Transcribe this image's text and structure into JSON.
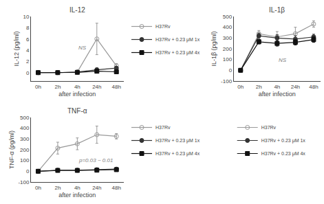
{
  "chart_data": [
    {
      "type": "line",
      "title": "IL-12",
      "xlabel": "after infection",
      "ylabel": "IL-12 (pg/ml)",
      "categories": [
        "0h",
        "2h",
        "4h",
        "24h",
        "48h"
      ],
      "ylim": [
        -1.5,
        10
      ],
      "yticks": [
        0,
        2,
        4,
        6,
        8,
        10
      ],
      "annotation": "NS",
      "grid": false,
      "legend": "right",
      "series": [
        {
          "name": "H37Rv",
          "color": "#999999",
          "marker": "circle-open",
          "values": [
            0,
            0,
            0.1,
            6.0,
            1.2
          ],
          "errors": [
            0.05,
            0.05,
            0.2,
            2.8,
            0.4
          ]
        },
        {
          "name": "H37Rv + 0.23 μM 1x",
          "color": "#333333",
          "marker": "circle",
          "values": [
            0,
            0,
            0.1,
            0.5,
            0.8
          ],
          "errors": [
            0.03,
            0.03,
            0.15,
            0.35,
            0.3
          ]
        },
        {
          "name": "H37Rv + 0.23 μM 4x",
          "color": "#111111",
          "marker": "square",
          "values": [
            0,
            0,
            0.05,
            0.25,
            0.15
          ],
          "errors": [
            0.03,
            0.03,
            0.1,
            0.2,
            0.1
          ]
        }
      ]
    },
    {
      "type": "line",
      "title": "IL-1β",
      "xlabel": "after infection",
      "ylabel": "IL-1β (pg/ml)",
      "categories": [
        "0h",
        "2h",
        "4h",
        "24h",
        "48h"
      ],
      "ylim": [
        -100,
        500
      ],
      "yticks": [
        -100,
        0,
        100,
        200,
        300,
        400,
        500
      ],
      "annotation": "NS",
      "grid": false,
      "legend": "bottom",
      "series": [
        {
          "name": "H37Rv",
          "color": "#999999",
          "marker": "circle-open",
          "values": [
            0,
            340,
            310,
            340,
            430
          ],
          "errors": [
            5,
            30,
            50,
            60,
            30
          ]
        },
        {
          "name": "H37Rv + 0.23 μM 1x",
          "color": "#333333",
          "marker": "circle",
          "values": [
            0,
            320,
            300,
            290,
            310
          ],
          "errors": [
            5,
            25,
            30,
            30,
            25
          ]
        },
        {
          "name": "H37Rv + 0.23 μM 4x",
          "color": "#111111",
          "marker": "square",
          "values": [
            0,
            265,
            250,
            260,
            285
          ],
          "errors": [
            5,
            20,
            25,
            25,
            25
          ]
        }
      ]
    },
    {
      "type": "line",
      "title": "TNF-α",
      "xlabel": "after infection",
      "ylabel": "TNF-α (pg/ml)",
      "categories": [
        "0h",
        "2h",
        "4h",
        "24h",
        "48h"
      ],
      "ylim": [
        -100,
        500
      ],
      "yticks": [
        -100,
        0,
        100,
        200,
        300,
        400,
        500
      ],
      "annotation": "p=0.03 ~ 0.01",
      "grid": false,
      "legend": "right",
      "series": [
        {
          "name": "H37Rv",
          "color": "#999999",
          "marker": "circle-open",
          "values": [
            0,
            215,
            255,
            340,
            325
          ],
          "errors": [
            5,
            55,
            55,
            80,
            25
          ]
        },
        {
          "name": "H37Rv + 0.23 μM 1x",
          "color": "#333333",
          "marker": "circle",
          "values": [
            0,
            10,
            10,
            15,
            20
          ],
          "errors": [
            2,
            5,
            5,
            8,
            8
          ]
        },
        {
          "name": "H37Rv + 0.23 μM 4x",
          "color": "#111111",
          "marker": "square",
          "values": [
            0,
            8,
            8,
            10,
            15
          ],
          "errors": [
            2,
            4,
            4,
            6,
            6
          ]
        }
      ]
    }
  ]
}
